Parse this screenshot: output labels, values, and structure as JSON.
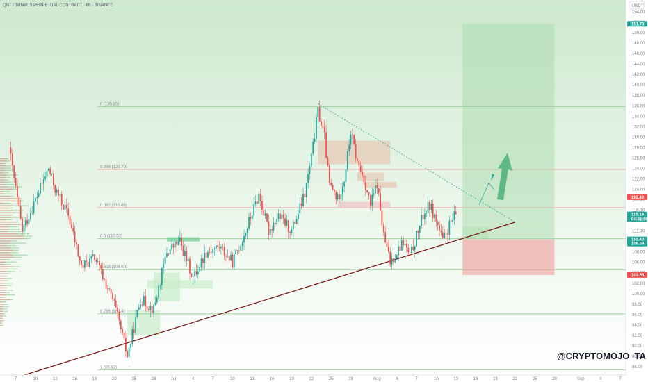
{
  "header": {
    "title": "QNT / TetherUS PERPETUAL CONTRACT · 6h · BINANCE"
  },
  "watermark": "@CRYPTOMOJO_TA",
  "currency": "USDT",
  "colors": {
    "up": "#26a69a",
    "down": "#ef5350",
    "trend": "#7b1a1a",
    "fib_red": "#f28b8b",
    "fib_green": "#81c784",
    "target": "#a5d6a7",
    "stop": "#ef9a9a"
  },
  "chart_data": {
    "type": "candlestick",
    "y_axis": {
      "min": 86,
      "max": 154,
      "step": 2,
      "ticks": [
        "86.00",
        "88.00",
        "90.00",
        "92.00",
        "94.00",
        "96.00",
        "98.00",
        "100.00",
        "102.00",
        "104.00",
        "106.00",
        "108.00",
        "110.00",
        "112.00",
        "114.00",
        "116.00",
        "118.00",
        "120.00",
        "122.00",
        "124.00",
        "126.00",
        "128.00",
        "130.00",
        "132.00",
        "134.00",
        "136.00",
        "138.00",
        "140.00",
        "142.00",
        "144.00",
        "146.00",
        "148.00",
        "150.00",
        "152.00",
        "154.00"
      ]
    },
    "x_axis": {
      "ticks": [
        {
          "label": "7",
          "day": 0
        },
        {
          "label": "10",
          "day": 3
        },
        {
          "label": "13",
          "day": 6
        },
        {
          "label": "16",
          "day": 9
        },
        {
          "label": "19",
          "day": 12
        },
        {
          "label": "22",
          "day": 15
        },
        {
          "label": "25",
          "day": 18
        },
        {
          "label": "28",
          "day": 21
        },
        {
          "label": "Jul",
          "day": 24
        },
        {
          "label": "4",
          "day": 27
        },
        {
          "label": "7",
          "day": 30
        },
        {
          "label": "10",
          "day": 33
        },
        {
          "label": "13",
          "day": 36
        },
        {
          "label": "16",
          "day": 39
        },
        {
          "label": "19",
          "day": 42
        },
        {
          "label": "22",
          "day": 45
        },
        {
          "label": "25",
          "day": 48
        },
        {
          "label": "28",
          "day": 51
        },
        {
          "label": "Aug",
          "day": 55
        },
        {
          "label": "4",
          "day": 58
        },
        {
          "label": "7",
          "day": 61
        },
        {
          "label": "10",
          "day": 64
        },
        {
          "label": "13",
          "day": 67
        },
        {
          "label": "16",
          "day": 70
        },
        {
          "label": "19",
          "day": 73
        },
        {
          "label": "22",
          "day": 76
        },
        {
          "label": "25",
          "day": 79
        },
        {
          "label": "28",
          "day": 82
        },
        {
          "label": "Sep",
          "day": 86
        },
        {
          "label": "4",
          "day": 89
        },
        {
          "label": "7",
          "day": 92
        }
      ]
    },
    "price_tags": [
      {
        "value": "151.70",
        "price": 151.7,
        "color": "#26a69a"
      },
      {
        "value": "118.49",
        "price": 118.49,
        "color": "#ef5350"
      },
      {
        "value": "115.19",
        "price": 115.19,
        "color": "#26a69a"
      },
      {
        "value": "04:31:59",
        "price": 114.3,
        "color": "#26a69a"
      },
      {
        "value": "110.40",
        "price": 110.4,
        "color": "#26a69a"
      },
      {
        "value": "109.59",
        "price": 109.59,
        "color": "#26a69a"
      },
      {
        "value": "103.58",
        "price": 103.58,
        "color": "#ef5350"
      }
    ],
    "fib_levels": [
      {
        "label": "0 (135.85)",
        "price": 135.85,
        "color": "#81c784"
      },
      {
        "label": "0.236 (123.79)",
        "price": 123.79,
        "color": "#f28b8b"
      },
      {
        "label": "0.382 (116.49)",
        "price": 116.49,
        "color": "#f28b8b"
      },
      {
        "label": "0.5 (110.53)",
        "price": 110.53,
        "color": "#81c784"
      },
      {
        "label": "0.618 (104.60)",
        "price": 104.6,
        "color": "#81c784"
      },
      {
        "label": "0.786 (96.14)",
        "price": 96.14,
        "color": "#81c784"
      },
      {
        "label": "1 (85.42)",
        "price": 85.42,
        "color": "#81c784"
      }
    ],
    "anchors": [
      {
        "day": -1,
        "price": 128
      },
      {
        "day": 1,
        "price": 112
      },
      {
        "day": 3,
        "price": 118
      },
      {
        "day": 5,
        "price": 124
      },
      {
        "day": 6,
        "price": 120
      },
      {
        "day": 8,
        "price": 115
      },
      {
        "day": 10,
        "price": 105
      },
      {
        "day": 12,
        "price": 107
      },
      {
        "day": 15,
        "price": 98
      },
      {
        "day": 17,
        "price": 88
      },
      {
        "day": 19,
        "price": 99
      },
      {
        "day": 21,
        "price": 97
      },
      {
        "day": 23,
        "price": 108
      },
      {
        "day": 25,
        "price": 110
      },
      {
        "day": 27,
        "price": 103
      },
      {
        "day": 29,
        "price": 108
      },
      {
        "day": 31,
        "price": 109
      },
      {
        "day": 33,
        "price": 106
      },
      {
        "day": 35,
        "price": 112
      },
      {
        "day": 37,
        "price": 119
      },
      {
        "day": 38.5,
        "price": 112
      },
      {
        "day": 40,
        "price": 115
      },
      {
        "day": 42,
        "price": 112
      },
      {
        "day": 44,
        "price": 119
      },
      {
        "day": 45,
        "price": 126
      },
      {
        "day": 46,
        "price": 135
      },
      {
        "day": 47,
        "price": 130
      },
      {
        "day": 47.7,
        "price": 121
      },
      {
        "day": 49,
        "price": 118
      },
      {
        "day": 50,
        "price": 122
      },
      {
        "day": 51,
        "price": 131
      },
      {
        "day": 52,
        "price": 125
      },
      {
        "day": 53,
        "price": 122
      },
      {
        "day": 54,
        "price": 117
      },
      {
        "day": 55,
        "price": 121
      },
      {
        "day": 56,
        "price": 111
      },
      {
        "day": 57,
        "price": 106
      },
      {
        "day": 59,
        "price": 110
      },
      {
        "day": 60,
        "price": 107
      },
      {
        "day": 62,
        "price": 115
      },
      {
        "day": 63,
        "price": 117
      },
      {
        "day": 64,
        "price": 114
      },
      {
        "day": 65,
        "price": 110
      },
      {
        "day": 66,
        "price": 113
      },
      {
        "day": 67,
        "price": 115.2
      }
    ],
    "trendline": [
      {
        "day": -1,
        "price": 83.5
      },
      {
        "day": 76,
        "price": 113.7
      }
    ],
    "triangle_top": [
      {
        "day": 46,
        "price": 136.4
      },
      {
        "day": 76,
        "price": 113.7
      }
    ],
    "long_position": {
      "day_start": 68,
      "day_end": 82,
      "entry": 110.4,
      "target": 151.7,
      "stop": 103.58
    }
  }
}
